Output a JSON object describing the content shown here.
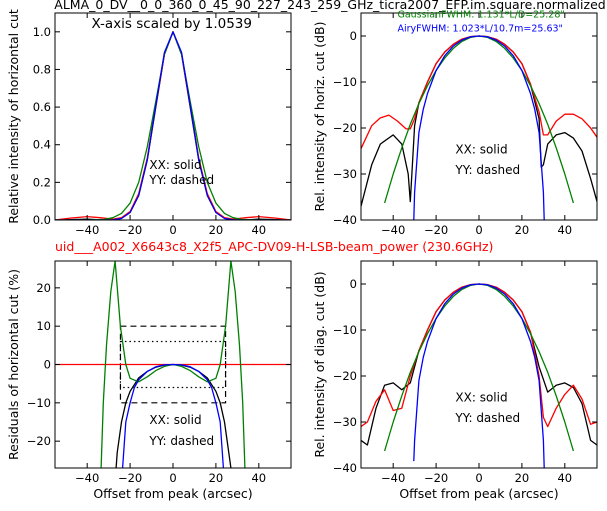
{
  "figure": {
    "title": "ALMA_0_DV__0_0_360_0_45_90_227_243_259_GHz_ticra2007_EFP.im.square.normalized",
    "subtitle": "uid___A002_X6643c8_X2f5_APC-DV09-H-LSB-beam_power (230.6GHz)",
    "colors": {
      "title": "#000000",
      "subtitle": "#ff0000"
    }
  },
  "chart_data": [
    {
      "type": "line",
      "id": "top-left",
      "xlabel": "",
      "ylabel": "Relative intensity of horizontal cut",
      "xlim": [
        -55,
        55
      ],
      "ylim": [
        0,
        1.1
      ],
      "xticks": [
        -40,
        -20,
        0,
        20,
        40
      ],
      "yticks": [
        0.0,
        0.2,
        0.4,
        0.6,
        0.8,
        1.0
      ],
      "ytick_labels": [
        "0.0",
        "0.2",
        "0.4",
        "0.6",
        "0.8",
        "1.0"
      ],
      "annotations": [
        {
          "text": "X-axis scaled by 1.0539",
          "x": -38,
          "y": 1.02
        },
        {
          "text": "XX: solid",
          "x": -11,
          "y": 0.27
        },
        {
          "text": "YY: dashed",
          "x": -11,
          "y": 0.19
        }
      ],
      "series": [
        {
          "color": "#000000",
          "x": [
            -55,
            -40,
            -32,
            -28,
            -24,
            -20,
            -16,
            -12,
            -8,
            -4,
            0,
            4,
            8,
            12,
            16,
            20,
            24,
            28,
            32,
            40,
            55
          ],
          "y": [
            0.0,
            0.004,
            0.0,
            0.0,
            0.01,
            0.04,
            0.13,
            0.32,
            0.6,
            0.88,
            1.0,
            0.88,
            0.6,
            0.32,
            0.13,
            0.04,
            0.01,
            0.0,
            0.0,
            0.004,
            0.0
          ]
        },
        {
          "color": "#ff0000",
          "x": [
            -55,
            -48,
            -40,
            -34,
            -28,
            -24,
            -20,
            -16,
            -12,
            -8,
            -4,
            0,
            4,
            8,
            12,
            16,
            20,
            24,
            28,
            34,
            40,
            48,
            55
          ],
          "y": [
            0.0,
            0.01,
            0.018,
            0.012,
            0.005,
            0.012,
            0.045,
            0.14,
            0.33,
            0.61,
            0.88,
            1.0,
            0.88,
            0.61,
            0.33,
            0.14,
            0.045,
            0.012,
            0.005,
            0.012,
            0.018,
            0.01,
            0.0
          ]
        },
        {
          "color": "#008000",
          "x": [
            -55,
            -40,
            -32,
            -28,
            -24,
            -20,
            -16,
            -12,
            -8,
            -4,
            0,
            4,
            8,
            12,
            16,
            20,
            24,
            28,
            32,
            40,
            55
          ],
          "y": [
            0.0,
            0.0,
            0.003,
            0.012,
            0.035,
            0.09,
            0.2,
            0.39,
            0.63,
            0.88,
            1.0,
            0.88,
            0.63,
            0.39,
            0.2,
            0.09,
            0.035,
            0.012,
            0.003,
            0.0,
            0.0
          ]
        },
        {
          "color": "#0000ff",
          "x": [
            -55,
            -40,
            -32,
            -28,
            -24,
            -20,
            -16,
            -12,
            -8,
            -4,
            0,
            4,
            8,
            12,
            16,
            20,
            24,
            28,
            32,
            40,
            55
          ],
          "y": [
            0.0,
            0.0,
            0.0,
            0.001,
            0.008,
            0.04,
            0.13,
            0.32,
            0.61,
            0.89,
            1.0,
            0.89,
            0.61,
            0.32,
            0.13,
            0.04,
            0.008,
            0.001,
            0.0,
            0.0,
            0.0
          ]
        }
      ]
    },
    {
      "type": "line",
      "id": "top-right",
      "xlabel": "",
      "ylabel": "Rel. intensity of horiz. cut (dB)",
      "xlim": [
        -55,
        55
      ],
      "ylim": [
        -40,
        5
      ],
      "xticks": [
        -40,
        -20,
        0,
        20,
        40
      ],
      "yticks": [
        -40,
        -30,
        -20,
        -10,
        0
      ],
      "ytick_labels": [
        "−40",
        "−30",
        "−20",
        "−10",
        "0"
      ],
      "annotations": [
        {
          "text": "GaussianFWHM: 1.131*L/D=25.28\"",
          "x": -38,
          "y": 4.0,
          "color": "#008000"
        },
        {
          "text": "AiryFWHM: 1.023*L/10.7m=25.63\"",
          "x": -38,
          "y": 1.0,
          "color": "#0000ff"
        },
        {
          "text": "XX: solid",
          "x": -11,
          "y": -25.5
        },
        {
          "text": "YY: dashed",
          "x": -11,
          "y": -30
        }
      ],
      "series": [
        {
          "color": "#000000",
          "x": [
            -55,
            -50,
            -46,
            -40,
            -36,
            -33,
            -32,
            -30,
            -28,
            -24,
            -20,
            -16,
            -12,
            -8,
            -4,
            0,
            4,
            8,
            12,
            16,
            20,
            24,
            28,
            29,
            30,
            32,
            36,
            40,
            44,
            48,
            52,
            55
          ],
          "y": [
            -37,
            -28,
            -23.5,
            -21.5,
            -23.5,
            -30,
            -36,
            -19.5,
            -14.5,
            -10,
            -6,
            -3.5,
            -1.8,
            -0.7,
            -0.15,
            0,
            -0.15,
            -0.7,
            -1.8,
            -3.5,
            -6,
            -10.5,
            -18,
            -28.5,
            -28,
            -23.5,
            -21.5,
            -21,
            -22.2,
            -25,
            -31,
            -36
          ]
        },
        {
          "color": "#ff0000",
          "x": [
            -55,
            -50,
            -46,
            -42,
            -38,
            -34,
            -32,
            -30,
            -28,
            -24,
            -20,
            -16,
            -12,
            -8,
            -4,
            0,
            4,
            8,
            12,
            16,
            20,
            24,
            28,
            30,
            32,
            36,
            40,
            44,
            48,
            52,
            55
          ],
          "y": [
            -24.5,
            -19.5,
            -17.8,
            -17.2,
            -18.5,
            -20.2,
            -20.2,
            -18,
            -14.5,
            -10,
            -6,
            -3.5,
            -1.8,
            -0.7,
            -0.15,
            0,
            -0.15,
            -0.7,
            -1.8,
            -3.5,
            -6,
            -10.5,
            -16.5,
            -21.5,
            -21.5,
            -18.5,
            -17,
            -17,
            -18,
            -20,
            -22
          ]
        },
        {
          "color": "#008000",
          "x": [
            -44,
            -40,
            -36,
            -32,
            -28,
            -24,
            -20,
            -16,
            -12,
            -8,
            -4,
            0,
            4,
            8,
            12,
            16,
            20,
            24,
            28,
            32,
            36,
            40,
            44
          ],
          "y": [
            -36.3,
            -30,
            -24.3,
            -19.2,
            -14.7,
            -10.8,
            -7.5,
            -4.8,
            -2.7,
            -1.2,
            -0.3,
            0,
            -0.3,
            -1.2,
            -2.7,
            -4.8,
            -7.5,
            -10.8,
            -14.7,
            -19.2,
            -24.3,
            -30,
            -36.3
          ]
        },
        {
          "color": "#0000ff",
          "x": [
            -30.4,
            -30,
            -28,
            -26,
            -24,
            -20,
            -16,
            -12,
            -8,
            -4,
            0,
            4,
            8,
            12,
            16,
            20,
            24,
            26,
            28,
            30,
            30.4
          ],
          "y": [
            -40,
            -34,
            -21,
            -16,
            -12.5,
            -7.5,
            -4.3,
            -2.2,
            -0.9,
            -0.2,
            0,
            -0.2,
            -0.9,
            -2.2,
            -4.3,
            -7.5,
            -12.5,
            -16,
            -21,
            -34,
            -40
          ]
        }
      ]
    },
    {
      "type": "line",
      "id": "bottom-left",
      "xlabel": "Offset from peak (arcsec)",
      "ylabel": "Residuals of horizontal cut (%)",
      "xlim": [
        -55,
        55
      ],
      "ylim": [
        -27,
        27
      ],
      "xticks": [
        -40,
        -20,
        0,
        20,
        40
      ],
      "yticks": [
        -20,
        -10,
        0,
        10,
        20
      ],
      "ytick_labels": [
        "−20",
        "−10",
        "0",
        "10",
        "20"
      ],
      "annotations": [
        {
          "text": "XX: solid",
          "x": -11,
          "y": -15.5
        },
        {
          "text": "YY: dashed",
          "x": -11,
          "y": -21
        }
      ],
      "boxes": [
        {
          "style": "dashed",
          "x": [
            -24.5,
            24.5
          ],
          "y": [
            -10,
            10
          ]
        },
        {
          "style": "dotted",
          "x": [
            -24.5,
            24.5
          ],
          "y": [
            -6,
            6
          ]
        }
      ],
      "series": [
        {
          "color": "#ff0000",
          "x": [
            -55,
            55
          ],
          "y": [
            0,
            0
          ]
        },
        {
          "color": "#000000",
          "x": [
            -26.5,
            -26,
            -24,
            -22,
            -20,
            -16,
            -12,
            -8,
            -4,
            0,
            4,
            8,
            12,
            16,
            20,
            22,
            24,
            26,
            27
          ],
          "y": [
            -27,
            -23,
            -15,
            -10,
            -7,
            -3.5,
            -1.8,
            -0.7,
            -0.15,
            0,
            -0.15,
            -0.7,
            -1.8,
            -3.5,
            -7,
            -10,
            -15,
            -23,
            -27
          ]
        },
        {
          "color": "#008000",
          "x": [
            -33.5,
            -32.5,
            -31,
            -29,
            -27,
            -24.5,
            -22,
            -20,
            -16,
            -12,
            -8,
            -4,
            0,
            4,
            8,
            12,
            16,
            20,
            22,
            24.5,
            27,
            29,
            31,
            32.5,
            33.5
          ],
          "y": [
            -27,
            -10,
            5,
            19,
            27,
            10,
            0,
            -3.6,
            -4.5,
            -3.2,
            -1.6,
            -0.5,
            0,
            -0.5,
            -1.6,
            -3.2,
            -4.5,
            -3.6,
            0,
            10,
            27,
            19,
            5,
            -10,
            -27
          ]
        },
        {
          "color": "#0000ff",
          "x": [
            -23.5,
            -22,
            -20,
            -18,
            -16,
            -12,
            -8,
            -4,
            0,
            4,
            8,
            12,
            16,
            18,
            20,
            22,
            23.5
          ],
          "y": [
            -27,
            -15,
            -10,
            -6,
            -4,
            -1.8,
            -0.6,
            -0.1,
            0,
            -0.1,
            -0.6,
            -1.8,
            -4,
            -6,
            -10,
            -15,
            -27
          ]
        }
      ]
    },
    {
      "type": "line",
      "id": "bottom-right",
      "xlabel": "Offset from peak (arcsec)",
      "ylabel": "Rel. intensity of diag. cut (dB)",
      "xlim": [
        -55,
        55
      ],
      "ylim": [
        -40,
        5
      ],
      "xticks": [
        -40,
        -20,
        0,
        20,
        40
      ],
      "yticks": [
        -40,
        -30,
        -20,
        -10,
        0
      ],
      "ytick_labels": [
        "−40",
        "−30",
        "−20",
        "−10",
        "0"
      ],
      "annotations": [
        {
          "text": "XX: solid",
          "x": -11,
          "y": -25.5
        },
        {
          "text": "YY: dashed",
          "x": -11,
          "y": -30
        }
      ],
      "series": [
        {
          "color": "#000000",
          "x": [
            -55,
            -52,
            -48,
            -44,
            -40,
            -36,
            -32,
            -28,
            -24,
            -20,
            -16,
            -12,
            -8,
            -4,
            0,
            4,
            8,
            12,
            16,
            20,
            24,
            28,
            32,
            36,
            40,
            44,
            48,
            52,
            55
          ],
          "y": [
            -34,
            -35,
            -27,
            -22,
            -21.5,
            -23,
            -21.5,
            -14.5,
            -10,
            -6,
            -3.5,
            -1.8,
            -0.7,
            -0.15,
            0,
            -0.15,
            -0.7,
            -1.8,
            -3.5,
            -6,
            -10.5,
            -18,
            -23.5,
            -22,
            -21.5,
            -22.5,
            -26,
            -34,
            -35
          ]
        },
        {
          "color": "#ff0000",
          "x": [
            -55,
            -52,
            -48,
            -44,
            -40,
            -36,
            -32,
            -28,
            -24,
            -20,
            -16,
            -12,
            -8,
            -4,
            0,
            4,
            8,
            12,
            16,
            20,
            24,
            28,
            30,
            32,
            36,
            40,
            44,
            48,
            52,
            55
          ],
          "y": [
            -31,
            -30,
            -25.5,
            -23,
            -27.5,
            -27,
            -20,
            -14.5,
            -10,
            -6,
            -3.5,
            -1.8,
            -0.7,
            -0.15,
            0,
            -0.15,
            -0.7,
            -1.8,
            -3.5,
            -6,
            -10.5,
            -20,
            -29,
            -31,
            -27,
            -24,
            -22,
            -25,
            -30.5,
            -30
          ]
        },
        {
          "color": "#008000",
          "x": [
            -44,
            -40,
            -36,
            -32,
            -28,
            -24,
            -20,
            -16,
            -12,
            -8,
            -4,
            0,
            4,
            8,
            12,
            16,
            20,
            24,
            28,
            32,
            36,
            40,
            44
          ],
          "y": [
            -36.3,
            -30,
            -24.3,
            -19.2,
            -14.7,
            -10.8,
            -7.5,
            -4.8,
            -2.7,
            -1.2,
            -0.3,
            0,
            -0.3,
            -1.2,
            -2.7,
            -4.8,
            -7.5,
            -10.8,
            -14.7,
            -19.2,
            -24.3,
            -30,
            -36.3
          ]
        },
        {
          "color": "#0000ff",
          "x": [
            -30.4,
            -30,
            -28,
            -26,
            -24,
            -20,
            -16,
            -12,
            -8,
            -4,
            0,
            4,
            8,
            12,
            16,
            20,
            24,
            26,
            28,
            30,
            30.4
          ],
          "y": [
            -38.5,
            -34,
            -21,
            -16,
            -12.5,
            -7.5,
            -4.3,
            -2.2,
            -0.9,
            -0.2,
            0,
            -0.2,
            -0.9,
            -2.2,
            -4.3,
            -7.5,
            -12.5,
            -16,
            -21,
            -34,
            -40
          ]
        }
      ]
    }
  ]
}
